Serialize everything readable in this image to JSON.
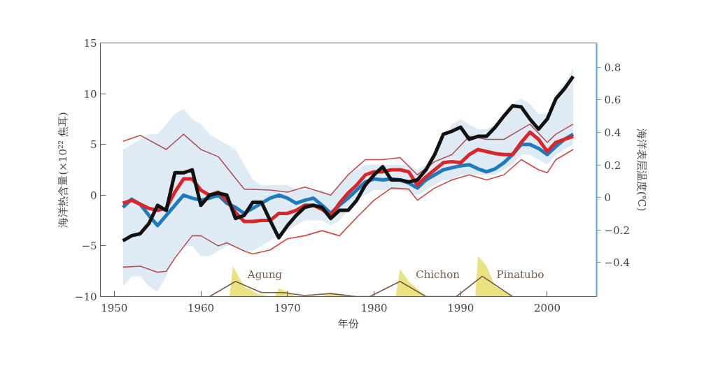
{
  "chart_data": {
    "type": "line",
    "xlabel": "年份",
    "ylabel": "海洋热含量(×10²² 焦耳)",
    "y2label": "海洋表层温度(℃)",
    "x": [
      1951,
      1952,
      1953,
      1954,
      1955,
      1956,
      1957,
      1958,
      1959,
      1960,
      1961,
      1962,
      1963,
      1964,
      1965,
      1966,
      1967,
      1968,
      1969,
      1970,
      1971,
      1972,
      1973,
      1974,
      1975,
      1976,
      1977,
      1978,
      1979,
      1980,
      1981,
      1982,
      1983,
      1984,
      1985,
      1986,
      1987,
      1988,
      1989,
      1990,
      1991,
      1992,
      1993,
      1994,
      1995,
      1996,
      1997,
      1998,
      1999,
      2000,
      2001,
      2002,
      2003
    ],
    "xlim": [
      1948.4,
      2005.7
    ],
    "xticks": [
      1950,
      1960,
      1970,
      1980,
      1990,
      2000
    ],
    "ylim": [
      -10,
      15
    ],
    "yticks": [
      -10,
      -5,
      0,
      5,
      10,
      15
    ],
    "y2lim": [
      -0.61,
      0.95
    ],
    "y2ticks": [
      -0.4,
      -0.2,
      0,
      0.2,
      0.4,
      0.6,
      0.8
    ],
    "grid": false,
    "series": [
      {
        "type": "area",
        "color": "#e6df72",
        "x": [
          1963.3,
          1963.7,
          1965,
          1966.5,
          1968,
          1968.2,
          1968.5,
          1969,
          1970,
          1971,
          1972,
          1974,
          1975,
          1977,
          1980,
          1982.5,
          1983,
          1984,
          1986,
          1990,
          1991.7,
          1992,
          1993,
          1994,
          1996
        ],
        "values": [
          -10,
          -7,
          -9,
          -9.7,
          -10,
          null,
          -10,
          -9.2,
          -9.5,
          -10,
          null,
          -10,
          -9.6,
          -10,
          null,
          -10,
          -7.3,
          -8.5,
          -10,
          null,
          -10,
          -6,
          -7,
          -9,
          -10
        ]
      },
      {
        "color": "#7a5a48",
        "x": [
          1961,
          1964,
          1967,
          1969.5,
          1972,
          1975,
          1978,
          1979.5,
          1983,
          1986,
          1989.5,
          1992.5,
          1996
        ],
        "values": [
          -10,
          -8.5,
          -9.6,
          -9.6,
          -9.9,
          -9.7,
          -10,
          -10,
          -8.5,
          -10,
          -10,
          -8,
          -10
        ]
      },
      {
        "color": "#cc4a44",
        "x": [
          1951,
          1953,
          1956,
          1958,
          1960,
          1962,
          1965,
          1968,
          1970,
          1972,
          1975,
          1977,
          1979,
          1981,
          1983,
          1985,
          1987,
          1989,
          1991,
          1993,
          1995,
          1997,
          1998,
          2000,
          2001,
          2003
        ],
        "values": [
          5.3,
          5.9,
          4.5,
          6.0,
          4.5,
          3.8,
          0.6,
          0.5,
          0.3,
          0.8,
          0.0,
          2.0,
          3.5,
          3.5,
          3.7,
          2.0,
          3.3,
          4.0,
          5.8,
          5.5,
          5.5,
          6.5,
          7.0,
          5.2,
          6.0,
          7.0
        ]
      },
      {
        "color": "#cc4a44",
        "x": [
          1951,
          1953,
          1955,
          1956,
          1957,
          1959,
          1960,
          1962,
          1963,
          1965,
          1966,
          1968,
          1970,
          1972,
          1974,
          1976,
          1978,
          1980,
          1982,
          1984,
          1985,
          1987,
          1989,
          1991,
          1993,
          1995,
          1997,
          1999,
          2000,
          2001,
          2003
        ],
        "values": [
          -7.1,
          -7.0,
          -7.6,
          -7.5,
          -6.2,
          -4.0,
          -4.0,
          -5.0,
          -4.7,
          -5.5,
          -5.8,
          -5.4,
          -4.3,
          -4.0,
          -3.5,
          -4.0,
          -2.2,
          -0.5,
          0.7,
          0.6,
          -0.5,
          0.7,
          1.5,
          2.0,
          1.5,
          2.0,
          3.5,
          2.5,
          2.2,
          3.5,
          4.5
        ]
      },
      {
        "color": "#1f7bbf",
        "values": [
          -1.2,
          -0.4,
          -0.9,
          -2.0,
          -3.0,
          -2.0,
          -1.0,
          0.0,
          -0.3,
          -0.5,
          -0.3,
          0.0,
          -0.8,
          -1.2,
          -1.8,
          -1.3,
          -0.8,
          -0.3,
          0.0,
          -0.3,
          -0.8,
          -0.5,
          -0.3,
          -1.0,
          -1.8,
          -1.0,
          -0.3,
          0.5,
          1.3,
          1.6,
          1.5,
          1.6,
          1.5,
          1.2,
          0.7,
          1.5,
          2.0,
          2.5,
          2.7,
          2.9,
          3.0,
          2.6,
          2.3,
          2.6,
          3.2,
          4.0,
          5.0,
          5.0,
          4.6,
          4.0,
          4.8,
          5.5,
          6.0
        ],
        "upper": [
          4.5,
          5,
          5.5,
          6,
          6,
          7,
          8,
          8.5,
          7.5,
          7,
          6,
          5.5,
          5,
          4.5,
          3,
          1.5,
          1,
          1,
          1,
          1,
          0.5,
          0.5,
          0.5,
          0.5,
          0,
          1,
          2,
          2.5,
          3,
          3,
          3,
          3,
          3,
          3,
          2.5,
          3,
          4,
          5.5,
          7,
          7.5,
          7,
          6.5,
          6.5,
          7,
          8,
          9,
          9.5,
          9,
          8,
          8,
          10,
          11,
          12.5
        ],
        "lower": [
          -9,
          -8,
          -8,
          -9,
          -9.5,
          -8,
          -6,
          -5,
          -5,
          -6,
          -6,
          -5.5,
          -5,
          -5,
          -5.5,
          -5.5,
          -5,
          -4.5,
          -4,
          -3.5,
          -3,
          -2.5,
          -2.5,
          -2.5,
          -3,
          -2.5,
          -1.5,
          -0.5,
          0,
          0.5,
          0.5,
          0.5,
          0.5,
          0.3,
          0,
          0.5,
          1,
          1.5,
          1.5,
          2,
          2,
          2,
          2,
          2,
          2.5,
          3,
          4,
          4,
          3.5,
          3,
          4,
          4.5,
          5
        ]
      },
      {
        "color": "#d8262b",
        "values": [
          -0.8,
          -0.5,
          -0.9,
          -1.3,
          -1.5,
          -1.3,
          0.3,
          1.6,
          1.6,
          0.5,
          0.0,
          0.3,
          -0.5,
          -1.7,
          -2.6,
          -2.6,
          -2.5,
          -2.5,
          -1.8,
          -1.8,
          -1.5,
          -1.0,
          -1.0,
          -1.4,
          -2.0,
          -0.8,
          0.2,
          1.0,
          2.0,
          2.3,
          2.3,
          2.5,
          2.5,
          2.3,
          1.0,
          1.8,
          2.5,
          3.2,
          3.3,
          3.2,
          4.0,
          4.5,
          4.3,
          4.1,
          4.0,
          4.0,
          5.2,
          6.2,
          5.5,
          4.3,
          5.2,
          5.5,
          5.8
        ]
      },
      {
        "color": "#111111",
        "values": [
          -4.5,
          -4.0,
          -3.8,
          -2.8,
          -1.0,
          -1.5,
          2.2,
          2.2,
          2.5,
          -1.0,
          0.0,
          0.2,
          0.0,
          -2.3,
          -2.0,
          -0.7,
          -0.7,
          -2.5,
          -4.2,
          -3.0,
          -2.0,
          -1.2,
          -1.0,
          -1.2,
          -2.3,
          -1.5,
          -1.5,
          -0.5,
          1.0,
          2.0,
          2.8,
          1.5,
          1.5,
          1.3,
          1.5,
          2.5,
          4.0,
          6.0,
          6.3,
          6.7,
          5.5,
          5.8,
          5.8,
          6.7,
          7.8,
          8.8,
          8.7,
          7.5,
          6.5,
          7.5,
          9.5,
          10.5,
          11.7
        ]
      }
    ],
    "annotations": [
      "Agung",
      "Chichon",
      "Pinatubo"
    ]
  }
}
